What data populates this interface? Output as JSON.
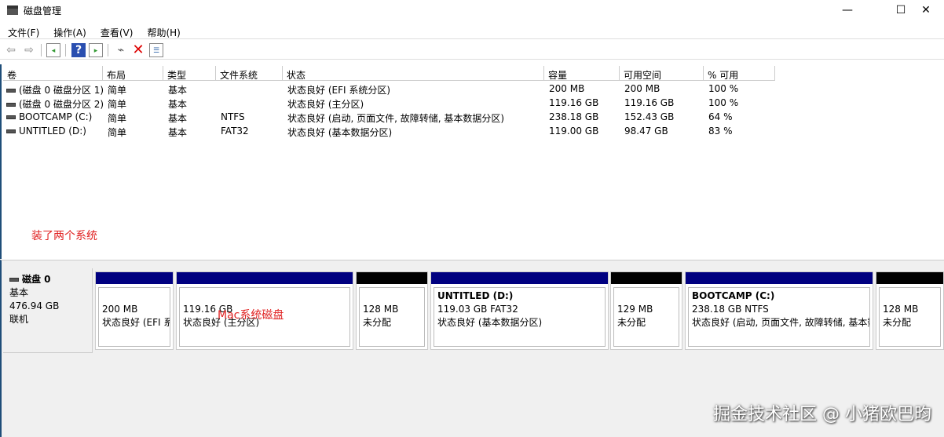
{
  "window": {
    "title": "磁盘管理",
    "minimize": "—",
    "maximize": "☐",
    "close": "✕"
  },
  "menu": [
    "文件(F)",
    "操作(A)",
    "查看(V)",
    "帮助(H)"
  ],
  "toolbar": {
    "icons": [
      "back-icon",
      "forward-icon",
      "show-hide-console-tree-icon",
      "help-icon",
      "show-action-pane-icon",
      "connect-icon",
      "delete-icon",
      "properties-icon"
    ]
  },
  "columns": [
    "卷",
    "布局",
    "类型",
    "文件系统",
    "状态",
    "容量",
    "可用空间",
    "% 可用"
  ],
  "volumes": [
    [
      "(磁盘 0 磁盘分区 1)",
      "简单",
      "基本",
      "",
      "状态良好 (EFI 系统分区)",
      "200 MB",
      "200 MB",
      "100 %"
    ],
    [
      "(磁盘 0 磁盘分区 2)",
      "简单",
      "基本",
      "",
      "状态良好 (主分区)",
      "119.16 GB",
      "119.16 GB",
      "100 %"
    ],
    [
      "BOOTCAMP (C:)",
      "简单",
      "基本",
      "NTFS",
      "状态良好 (启动, 页面文件, 故障转储, 基本数据分区)",
      "238.18 GB",
      "152.43 GB",
      "64 %"
    ],
    [
      "UNTITLED (D:)",
      "简单",
      "基本",
      "FAT32",
      "状态良好 (基本数据分区)",
      "119.00 GB",
      "98.47 GB",
      "83 %"
    ]
  ],
  "annotations": {
    "list_note": "装了两个系统",
    "mac_note": "Mac系统磁盘"
  },
  "disk": {
    "name": "磁盘 0",
    "type": "基本",
    "size": "476.94 GB",
    "status": "联机"
  },
  "partitions": [
    {
      "name": "",
      "size": "200 MB",
      "status": "状态良好 (EFI 系统分区)",
      "color": "#000080"
    },
    {
      "name": "",
      "size": "119.16 GB",
      "status": "状态良好 (主分区)",
      "color": "#000080"
    },
    {
      "name": "",
      "size": "128 MB",
      "status": "未分配",
      "color": "#000000"
    },
    {
      "name": "UNTITLED  (D:)",
      "size": "119.03 GB FAT32",
      "status": "状态良好 (基本数据分区)",
      "color": "#000080"
    },
    {
      "name": "",
      "size": "129 MB",
      "status": "未分配",
      "color": "#000000"
    },
    {
      "name": "BOOTCAMP  (C:)",
      "size": "238.18 GB NTFS",
      "status": "状态良好 (启动, 页面文件, 故障转储, 基本数据分区)",
      "color": "#000080"
    },
    {
      "name": "",
      "size": "128 MB",
      "status": "未分配",
      "color": "#000000"
    }
  ],
  "watermark": "掘金技术社区 @ 小猪欧巴昀"
}
